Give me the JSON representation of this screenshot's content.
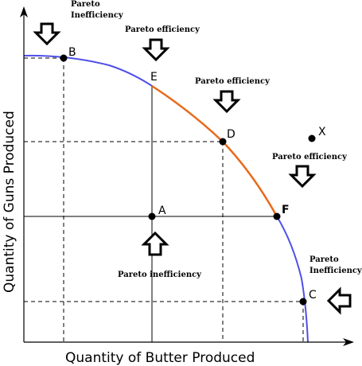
{
  "axes": {
    "x_label": "Quantity of Butter Produced",
    "y_label": "Quantity of Guns Produced"
  },
  "points": {
    "a": "A",
    "b": "B",
    "c": "C",
    "d": "D",
    "e": "E",
    "f": "F",
    "x": "X"
  },
  "annotations": {
    "top_left_line1": "Pareto",
    "top_left_line2": "Inefficiency",
    "efficiency_1": "Pareto efficiency",
    "efficiency_2": "Pareto efficiency",
    "efficiency_3": "Pareto efficiency",
    "inefficiency_center": "Pareto inefficiency",
    "right_line1": "Pareto",
    "right_line2": "Inefficiency"
  },
  "colors": {
    "frontier_outer": "#4f4fe8",
    "frontier_efficient": "#e86a1a",
    "axis": "#000000",
    "point": "#000000"
  }
}
